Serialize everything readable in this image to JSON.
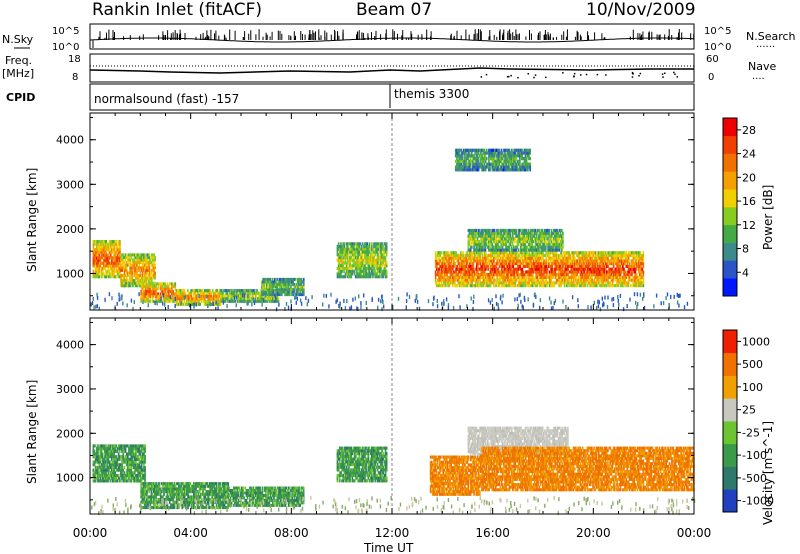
{
  "header": {
    "station": "Rankin Inlet (fitACF)",
    "beam": "Beam 07",
    "date": "10/Nov/2009"
  },
  "strip_labels": {
    "nsky": "N.Sky",
    "freq": "Freq.",
    "mhz": "[MHz]",
    "cpid": "CPID",
    "nsearch": "N.Search",
    "nave": "Nave",
    "left_top_1": "10^5",
    "left_top_2": "10^0",
    "left_freq_hi": "18",
    "left_freq_lo": "8",
    "right_top_1": "10^5",
    "right_top_2": "10^0",
    "right_nave_hi": "60",
    "right_nave_lo": "0"
  },
  "cpid": {
    "first": "normalsound (fast) -157",
    "second": "themis 3300"
  },
  "chart_data": [
    {
      "type": "heatmap",
      "panel": "power",
      "xlabel": "Time UT",
      "ylabel": "Slant Range [km]",
      "x_ticks": [
        "00:00",
        "04:00",
        "08:00",
        "12:00",
        "16:00",
        "20:00",
        "00:00"
      ],
      "xlim_hours": [
        0,
        24
      ],
      "y_ticks": [
        1000,
        2000,
        3000,
        4000
      ],
      "ylim": [
        180,
        4600
      ],
      "colorbar": {
        "label": "Power [dB]",
        "ticks": [
          4,
          8,
          12,
          16,
          20,
          24,
          28
        ],
        "range": [
          0,
          30
        ],
        "colors": [
          "#0018ff",
          "#2a55c8",
          "#3c8a8a",
          "#44aa44",
          "#88cc22",
          "#f0d000",
          "#f5a000",
          "#f07000",
          "#f04000",
          "#ee0000"
        ]
      },
      "regions": [
        {
          "t": [
            0.1,
            1.2
          ],
          "r": [
            900,
            1750
          ],
          "level": 0.85
        },
        {
          "t": [
            1.2,
            2.6
          ],
          "r": [
            700,
            1450
          ],
          "level": 0.75
        },
        {
          "t": [
            2.0,
            3.4
          ],
          "r": [
            350,
            800
          ],
          "level": 0.85
        },
        {
          "t": [
            3.4,
            5.2
          ],
          "r": [
            280,
            650
          ],
          "level": 0.8
        },
        {
          "t": [
            5.2,
            7.5
          ],
          "r": [
            350,
            650
          ],
          "level": 0.55
        },
        {
          "t": [
            6.8,
            8.5
          ],
          "r": [
            500,
            900
          ],
          "level": 0.45
        },
        {
          "t": [
            9.8,
            11.8
          ],
          "r": [
            900,
            1700
          ],
          "level": 0.55
        },
        {
          "t": [
            13.7,
            22.0
          ],
          "r": [
            700,
            1500
          ],
          "level": 0.9
        },
        {
          "t": [
            15.0,
            18.8
          ],
          "r": [
            1500,
            2000
          ],
          "level": 0.5
        },
        {
          "t": [
            14.5,
            17.5
          ],
          "r": [
            3300,
            3800
          ],
          "level": 0.4
        }
      ]
    },
    {
      "type": "heatmap",
      "panel": "velocity",
      "xlabel": "Time UT",
      "ylabel": "Slant Range [km]",
      "x_ticks": [
        "00:00",
        "04:00",
        "08:00",
        "12:00",
        "16:00",
        "20:00",
        "00:00"
      ],
      "xlim_hours": [
        0,
        24
      ],
      "y_ticks": [
        1000,
        2000,
        3000,
        4000
      ],
      "ylim": [
        180,
        4600
      ],
      "colorbar": {
        "label": "Velocity [m s^-1]",
        "ticks": [
          1000,
          500,
          100,
          25,
          -25,
          -100,
          -500,
          -1000
        ],
        "colors": [
          "#2040c0",
          "#2e7a6a",
          "#3a9a4a",
          "#6cc430",
          "#c8c8c0",
          "#f0a000",
          "#f07000",
          "#ee2000"
        ]
      },
      "regions": [
        {
          "t": [
            0.1,
            2.2
          ],
          "r": [
            900,
            1750
          ],
          "class": "green"
        },
        {
          "t": [
            2.0,
            5.5
          ],
          "r": [
            300,
            900
          ],
          "class": "green"
        },
        {
          "t": [
            5.5,
            8.5
          ],
          "r": [
            350,
            800
          ],
          "class": "green"
        },
        {
          "t": [
            9.8,
            11.8
          ],
          "r": [
            900,
            1700
          ],
          "class": "green"
        },
        {
          "t": [
            13.5,
            15.5
          ],
          "r": [
            600,
            1500
          ],
          "class": "orange"
        },
        {
          "t": [
            15.0,
            19.0
          ],
          "r": [
            1500,
            2150
          ],
          "class": "grey"
        },
        {
          "t": [
            15.5,
            24.0
          ],
          "r": [
            700,
            1700
          ],
          "class": "orange"
        }
      ]
    }
  ],
  "colorbar_labels": {
    "power_title": "Power [dB]",
    "velocity_title": "Velocity [m s^-1]"
  },
  "x_axis_title": "Time UT",
  "y_axis_title": "Slant Range [km]"
}
